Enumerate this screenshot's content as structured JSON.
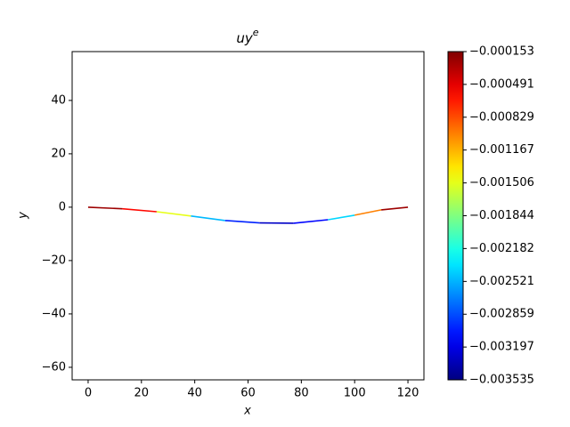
{
  "chart_data": {
    "type": "colored_line",
    "title": "uy",
    "title_superscript": "e",
    "x_label": "x",
    "y_label": "y",
    "x": [
      0,
      12.86,
      25.71,
      38.57,
      51.43,
      64.29,
      77.14,
      90,
      100,
      110,
      120
    ],
    "y": [
      0,
      -0.6,
      -1.7,
      -3.3,
      -5.0,
      -5.9,
      -6.0,
      -4.7,
      -3.0,
      -1.0,
      0
    ],
    "segment_values": [
      -0.00025,
      -0.0006,
      -0.0015,
      -0.0025,
      -0.003,
      -0.0033,
      -0.0031,
      -0.0024,
      -0.001,
      -0.00025
    ],
    "colormap": "jet",
    "xlim": [
      -6,
      126
    ],
    "ylim": [
      -64.7,
      58.3
    ],
    "xticks": [
      0,
      20,
      40,
      60,
      80,
      100,
      120
    ],
    "yticks": [
      {
        "value": -60,
        "label": "−60"
      },
      {
        "value": -40,
        "label": "−40"
      },
      {
        "value": -20,
        "label": "−20"
      },
      0,
      20,
      40
    ],
    "clim": [
      -0.003535,
      -0.000153
    ],
    "cticks": [
      {
        "value": -0.000153,
        "label": "−0.000153"
      },
      {
        "value": -0.000491,
        "label": "−0.000491"
      },
      {
        "value": -0.000829,
        "label": "−0.000829"
      },
      {
        "value": -0.001167,
        "label": "−0.001167"
      },
      {
        "value": -0.001506,
        "label": "−0.001506"
      },
      {
        "value": -0.001844,
        "label": "−0.001844"
      },
      {
        "value": -0.002182,
        "label": "−0.002182"
      },
      {
        "value": -0.002521,
        "label": "−0.002521"
      },
      {
        "value": -0.002859,
        "label": "−0.002859"
      },
      {
        "value": -0.003197,
        "label": "−0.003197"
      },
      {
        "value": -0.003535,
        "label": "−0.003535"
      }
    ]
  }
}
